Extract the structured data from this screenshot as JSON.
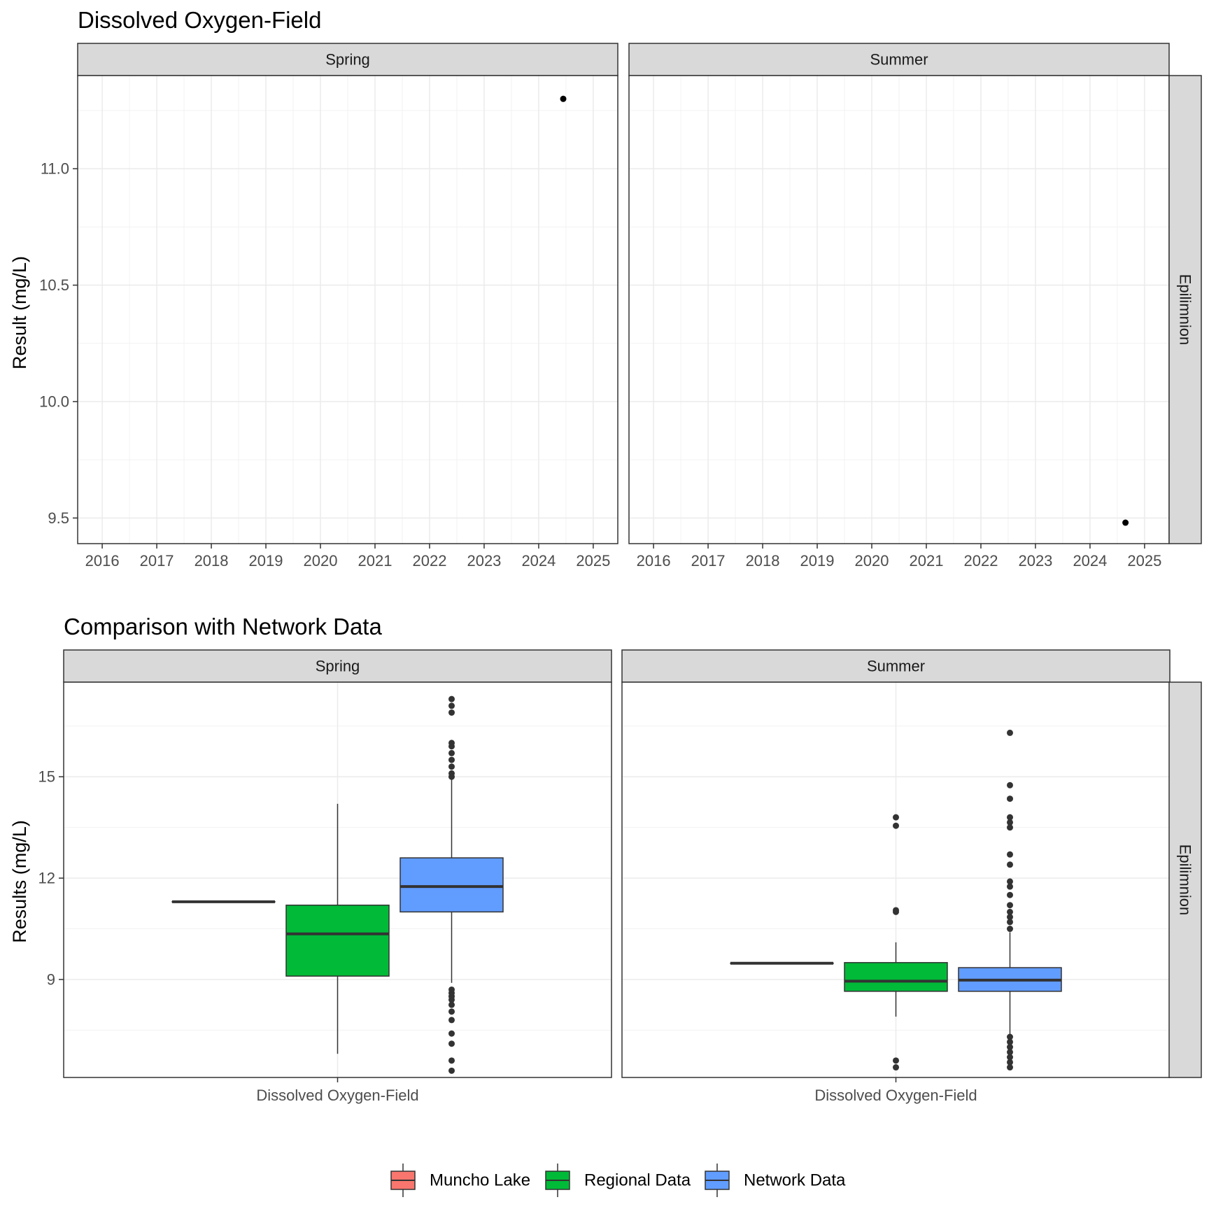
{
  "chart_data": [
    {
      "type": "scatter",
      "title": "Dissolved Oxygen-Field",
      "ylabel": "Result (mg/L)",
      "xlabel": "",
      "x_ticks": [
        "2016",
        "2017",
        "2018",
        "2019",
        "2020",
        "2021",
        "2022",
        "2023",
        "2024",
        "2025"
      ],
      "y_ticks": [
        "9.5",
        "10.0",
        "10.5",
        "11.0"
      ],
      "xlim": [
        2015.55,
        2025.45
      ],
      "ylim": [
        9.39,
        11.4
      ],
      "grid": true,
      "row_facet": "Epilimnion",
      "panels": [
        {
          "facet": "Spring",
          "points": [
            {
              "x": 2024.45,
              "y": 11.3
            }
          ]
        },
        {
          "facet": "Summer",
          "points": [
            {
              "x": 2024.65,
              "y": 9.48
            }
          ]
        }
      ]
    },
    {
      "type": "box",
      "title": "Comparison with Network Data",
      "ylabel": "Results (mg/L)",
      "xlabel": "",
      "categories": [
        "Dissolved Oxygen-Field"
      ],
      "y_ticks": [
        "9",
        "12",
        "15"
      ],
      "ylim": [
        6.1,
        17.8
      ],
      "grid": true,
      "row_facet": "Epilimnion",
      "legend": {
        "position": "bottom",
        "entries": [
          {
            "name": "Muncho Lake",
            "color": "#F8766D"
          },
          {
            "name": "Regional Data",
            "color": "#00BA38"
          },
          {
            "name": "Network Data",
            "color": "#619CFF"
          }
        ]
      },
      "panels": [
        {
          "facet": "Spring",
          "boxes": [
            {
              "group": "Muncho Lake",
              "min": 11.3,
              "q1": 11.3,
              "median": 11.3,
              "q3": 11.3,
              "max": 11.3,
              "outliers": []
            },
            {
              "group": "Regional Data",
              "min": 6.8,
              "q1": 9.1,
              "median": 10.35,
              "q3": 11.2,
              "max": 14.2,
              "outliers": []
            },
            {
              "group": "Network Data",
              "min": 8.9,
              "q1": 11.0,
              "median": 11.75,
              "q3": 12.6,
              "max": 15.1,
              "outliers": [
                6.3,
                6.6,
                7.1,
                7.4,
                7.8,
                8.05,
                8.25,
                8.4,
                8.5,
                8.6,
                8.7,
                15.0,
                15.1,
                15.3,
                15.5,
                15.7,
                15.9,
                16.0,
                16.9,
                17.1,
                17.3
              ]
            }
          ]
        },
        {
          "facet": "Summer",
          "boxes": [
            {
              "group": "Muncho Lake",
              "min": 9.48,
              "q1": 9.48,
              "median": 9.48,
              "q3": 9.48,
              "max": 9.48,
              "outliers": []
            },
            {
              "group": "Regional Data",
              "min": 7.9,
              "q1": 8.65,
              "median": 8.95,
              "q3": 9.5,
              "max": 10.1,
              "outliers": [
                6.4,
                6.6,
                11.0,
                11.05,
                13.55,
                13.8
              ]
            },
            {
              "group": "Network Data",
              "min": 6.9,
              "q1": 8.65,
              "median": 8.98,
              "q3": 9.35,
              "max": 10.4,
              "outliers": [
                6.4,
                6.55,
                6.7,
                6.85,
                7.0,
                7.15,
                7.3,
                10.5,
                10.7,
                10.85,
                11.0,
                11.2,
                11.5,
                11.75,
                11.9,
                12.4,
                12.7,
                13.5,
                13.65,
                13.8,
                14.35,
                14.75,
                16.3
              ]
            }
          ]
        }
      ]
    }
  ]
}
